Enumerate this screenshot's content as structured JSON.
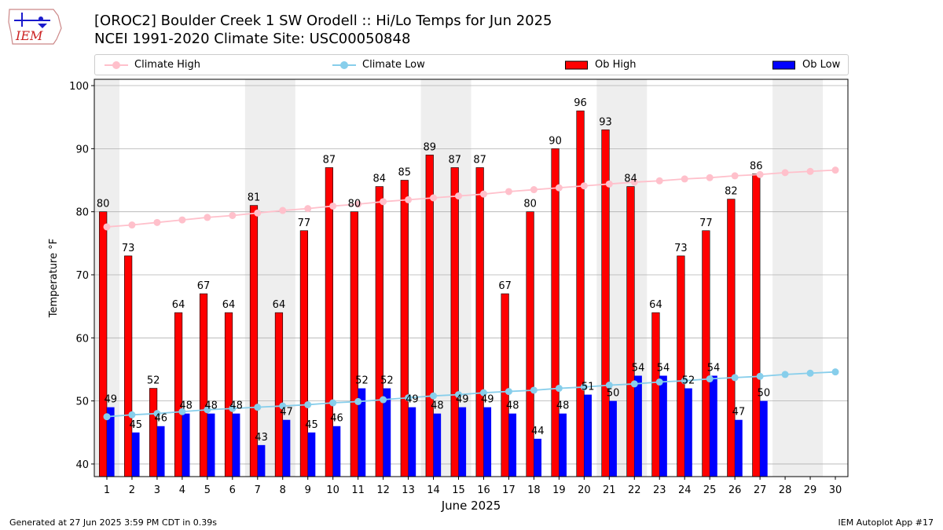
{
  "header": {
    "title_line1": "[OROC2] Boulder Creek 1 SW Orodell :: Hi/Lo Temps for Jun 2025",
    "title_line2": "NCEI 1991-2020 Climate Site: USC00050848",
    "logo_text": "IEM"
  },
  "footer": {
    "left": "Generated at 27 Jun 2025 3:59 PM CDT in 0.39s",
    "right": "IEM Autoplot App #17"
  },
  "colors": {
    "ob_high": "#ff0000",
    "ob_low": "#0000ff",
    "climate_high": "#ffc0cb",
    "climate_low": "#87ceeb",
    "weekend_shade": "#eeeeee",
    "grid": "#b0b0b0"
  },
  "chart_data": {
    "type": "bar",
    "xlabel": "June 2025",
    "ylabel": "Temperature °F",
    "ylim": [
      38,
      101
    ],
    "yticks": [
      40,
      50,
      60,
      70,
      80,
      90,
      100
    ],
    "grid": "horizontal",
    "legend_placement": "top",
    "days": [
      1,
      2,
      3,
      4,
      5,
      6,
      7,
      8,
      9,
      10,
      11,
      12,
      13,
      14,
      15,
      16,
      17,
      18,
      19,
      20,
      21,
      22,
      23,
      24,
      25,
      26,
      27,
      28,
      29,
      30
    ],
    "shaded_weekends": [
      [
        1,
        1
      ],
      [
        7,
        8
      ],
      [
        14,
        15
      ],
      [
        21,
        22
      ],
      [
        28,
        29
      ]
    ],
    "series": [
      {
        "name": "Climate High",
        "kind": "line",
        "values": [
          77.6,
          77.9,
          78.3,
          78.7,
          79.1,
          79.4,
          79.8,
          80.2,
          80.5,
          80.9,
          81.2,
          81.6,
          81.9,
          82.2,
          82.5,
          82.8,
          83.2,
          83.5,
          83.8,
          84.1,
          84.4,
          84.7,
          84.9,
          85.2,
          85.4,
          85.7,
          85.9,
          86.2,
          86.4,
          86.6
        ]
      },
      {
        "name": "Climate Low",
        "kind": "line",
        "values": [
          47.5,
          47.8,
          48.0,
          48.3,
          48.6,
          48.8,
          49.0,
          49.2,
          49.4,
          49.7,
          49.9,
          50.2,
          50.5,
          50.8,
          51.0,
          51.3,
          51.5,
          51.7,
          52.0,
          52.2,
          52.5,
          52.7,
          53.0,
          53.2,
          53.5,
          53.7,
          53.9,
          54.2,
          54.4,
          54.6
        ]
      },
      {
        "name": "Ob High",
        "kind": "bar",
        "values": [
          80,
          73,
          52,
          64,
          67,
          64,
          81,
          64,
          77,
          87,
          80,
          84,
          85,
          89,
          87,
          87,
          67,
          80,
          90,
          96,
          93,
          84,
          64,
          73,
          77,
          82,
          86
        ]
      },
      {
        "name": "Ob Low",
        "kind": "bar",
        "values": [
          49,
          45,
          46,
          48,
          48,
          48,
          43,
          47,
          45,
          46,
          52,
          52,
          49,
          48,
          49,
          49,
          48,
          44,
          48,
          51,
          50,
          54,
          54,
          52,
          54,
          47,
          50
        ]
      }
    ]
  }
}
